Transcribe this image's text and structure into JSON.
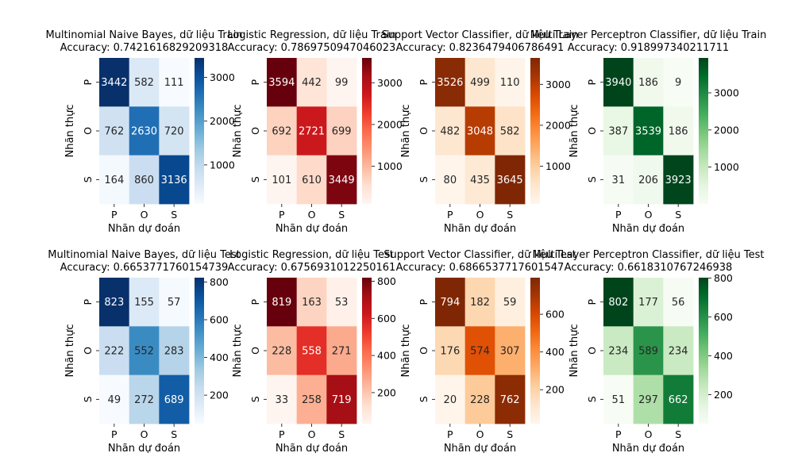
{
  "figure": {
    "background": "#ffffff"
  },
  "chart_data": [
    {
      "type": "heatmap",
      "title": "Multinomial Naive Bayes, dữ liệu Train",
      "subtitle": "Accuracy: 0.7421616829209318",
      "xlabel": "Nhãn dự đoán",
      "ylabel": "Nhãn thực",
      "x_categories": [
        "P",
        "O",
        "S"
      ],
      "y_categories": [
        "P",
        "O",
        "S"
      ],
      "values": [
        [
          3442,
          582,
          111
        ],
        [
          762,
          2630,
          720
        ],
        [
          164,
          860,
          3136
        ]
      ],
      "colormap": "Blues",
      "colorbar_ticks": [
        1000,
        2000,
        3000
      ]
    },
    {
      "type": "heatmap",
      "title": "Logistic Regression, dữ liệu Train",
      "subtitle": "Accuracy: 0.7869750947046023",
      "xlabel": "Nhãn dự đoán",
      "ylabel": "Nhãn thực",
      "x_categories": [
        "P",
        "O",
        "S"
      ],
      "y_categories": [
        "P",
        "O",
        "S"
      ],
      "values": [
        [
          3594,
          442,
          99
        ],
        [
          692,
          2721,
          699
        ],
        [
          101,
          610,
          3449
        ]
      ],
      "colormap": "Reds",
      "colorbar_ticks": [
        1000,
        2000,
        3000
      ]
    },
    {
      "type": "heatmap",
      "title": "Support Vector Classifier, dữ liệu Train",
      "subtitle": "Accuracy: 0.8236479406786491",
      "xlabel": "Nhãn dự đoán",
      "ylabel": "Nhãn thực",
      "x_categories": [
        "P",
        "O",
        "S"
      ],
      "y_categories": [
        "P",
        "O",
        "S"
      ],
      "values": [
        [
          3526,
          499,
          110
        ],
        [
          482,
          3048,
          582
        ],
        [
          80,
          435,
          3645
        ]
      ],
      "colormap": "Oranges",
      "colorbar_ticks": [
        1000,
        2000,
        3000
      ]
    },
    {
      "type": "heatmap",
      "title": "Multi Layer Perceptron Classifier, dữ liệu Train",
      "subtitle": "Accuracy: 0.918997340211711",
      "xlabel": "Nhãn dự đoán",
      "ylabel": "Nhãn thực",
      "x_categories": [
        "P",
        "O",
        "S"
      ],
      "y_categories": [
        "P",
        "O",
        "S"
      ],
      "values": [
        [
          3940,
          186,
          9
        ],
        [
          387,
          3539,
          186
        ],
        [
          31,
          206,
          3923
        ]
      ],
      "colormap": "Greens",
      "colorbar_ticks": [
        1000,
        2000,
        3000
      ]
    },
    {
      "type": "heatmap",
      "title": "Multinomial Naive Bayes, dữ liệu Test",
      "subtitle": "Accuracy: 0.6653771760154739",
      "xlabel": "Nhãn dự đoán",
      "ylabel": "Nhãn thực",
      "x_categories": [
        "P",
        "O",
        "S"
      ],
      "y_categories": [
        "P",
        "O",
        "S"
      ],
      "values": [
        [
          823,
          155,
          57
        ],
        [
          222,
          552,
          283
        ],
        [
          49,
          272,
          689
        ]
      ],
      "colormap": "Blues",
      "colorbar_ticks": [
        200,
        400,
        600,
        800
      ]
    },
    {
      "type": "heatmap",
      "title": "Logistic Regression, dữ liệu Test",
      "subtitle": "Accuracy: 0.6756931012250161",
      "xlabel": "Nhãn dự đoán",
      "ylabel": "Nhãn thực",
      "x_categories": [
        "P",
        "O",
        "S"
      ],
      "y_categories": [
        "P",
        "O",
        "S"
      ],
      "values": [
        [
          819,
          163,
          53
        ],
        [
          228,
          558,
          271
        ],
        [
          33,
          258,
          719
        ]
      ],
      "colormap": "Reds",
      "colorbar_ticks": [
        200,
        400,
        600,
        800
      ]
    },
    {
      "type": "heatmap",
      "title": "Support Vector Classifier, dữ liệu Test",
      "subtitle": "Accuracy: 0.6866537717601547",
      "xlabel": "Nhãn dự đoán",
      "ylabel": "Nhãn thực",
      "x_categories": [
        "P",
        "O",
        "S"
      ],
      "y_categories": [
        "P",
        "O",
        "S"
      ],
      "values": [
        [
          794,
          182,
          59
        ],
        [
          176,
          574,
          307
        ],
        [
          20,
          228,
          762
        ]
      ],
      "colormap": "Oranges",
      "colorbar_ticks": [
        200,
        400,
        600
      ]
    },
    {
      "type": "heatmap",
      "title": "Multi Layer Perceptron Classifier, dữ liệu Test",
      "subtitle": "Accuracy: 0.6618310767246938",
      "xlabel": "Nhãn dự đoán",
      "ylabel": "Nhãn thực",
      "x_categories": [
        "P",
        "O",
        "S"
      ],
      "y_categories": [
        "P",
        "O",
        "S"
      ],
      "values": [
        [
          802,
          177,
          56
        ],
        [
          234,
          589,
          234
        ],
        [
          51,
          297,
          662
        ]
      ],
      "colormap": "Greens",
      "colorbar_ticks": [
        200,
        400,
        600,
        800
      ]
    }
  ],
  "colormaps": {
    "Blues": [
      "#f7fbff",
      "#deebf7",
      "#c6dbef",
      "#9ecae1",
      "#6baed6",
      "#4292c6",
      "#2171b5",
      "#08519c",
      "#08306b"
    ],
    "Reds": [
      "#fff5f0",
      "#fee0d2",
      "#fcbba1",
      "#fc9272",
      "#fb6a4a",
      "#ef3b2c",
      "#cb181d",
      "#a50f15",
      "#67000d"
    ],
    "Oranges": [
      "#fff5eb",
      "#fee6ce",
      "#fdd0a2",
      "#fdae6b",
      "#fd8d3c",
      "#f16913",
      "#d94801",
      "#a63603",
      "#7f2704"
    ],
    "Greens": [
      "#f7fcf5",
      "#e5f5e0",
      "#c7e9c0",
      "#a1d99b",
      "#74c476",
      "#41ab5d",
      "#238b45",
      "#006d2c",
      "#00441b"
    ]
  }
}
